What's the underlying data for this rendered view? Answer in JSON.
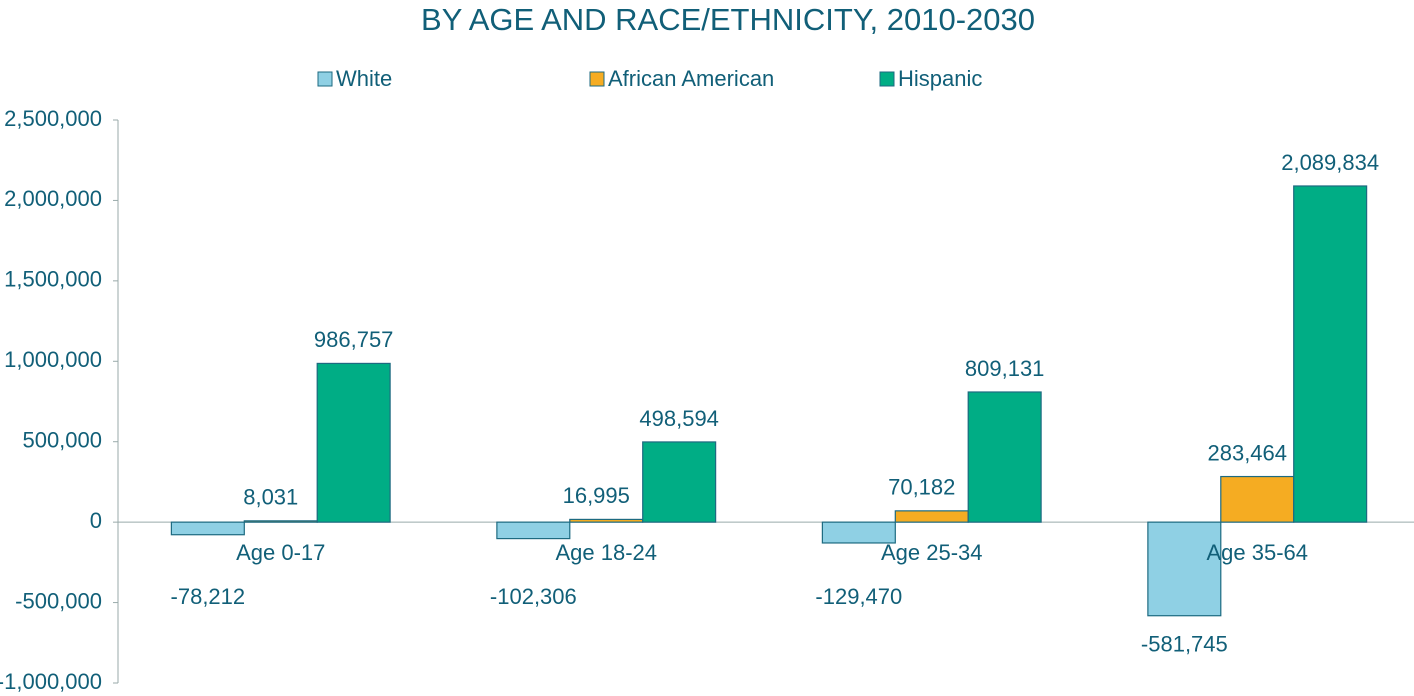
{
  "chart_data": {
    "type": "bar",
    "title": "BY AGE AND RACE/ETHNICITY, 2010-2030",
    "categories": [
      "Age 0-17",
      "Age 18-24",
      "Age 25-34",
      "Age 35-64"
    ],
    "series": [
      {
        "name": "White",
        "color": "#8fd0e4",
        "values": [
          -78212,
          -102306,
          -129470,
          -581745
        ],
        "value_labels": [
          "-78,212",
          "-102,306",
          "-129,470",
          "-581,745"
        ]
      },
      {
        "name": "African American",
        "color": "#f5ac22",
        "values": [
          8031,
          16995,
          70182,
          283464
        ],
        "value_labels": [
          "8,031",
          "16,995",
          "70,182",
          "283,464"
        ]
      },
      {
        "name": "Hispanic",
        "color": "#00ad85",
        "values": [
          986757,
          498594,
          809131,
          2089834
        ],
        "value_labels": [
          "986,757",
          "498,594",
          "809,131",
          "2,089,834"
        ]
      }
    ],
    "ylim": [
      -1000000,
      2500000
    ],
    "yticks": [
      {
        "value": -1000000,
        "label": "-1,000,000"
      },
      {
        "value": -500000,
        "label": "-500,000"
      },
      0,
      {
        "value": 500000,
        "label": "500,000"
      },
      {
        "value": 1000000,
        "label": "1,000,000"
      },
      {
        "value": 1500000,
        "label": "1,500,000"
      },
      {
        "value": 2000000,
        "label": "2,000,000"
      },
      {
        "value": 2500000,
        "label": "2,500,000"
      }
    ],
    "legend": "top"
  }
}
